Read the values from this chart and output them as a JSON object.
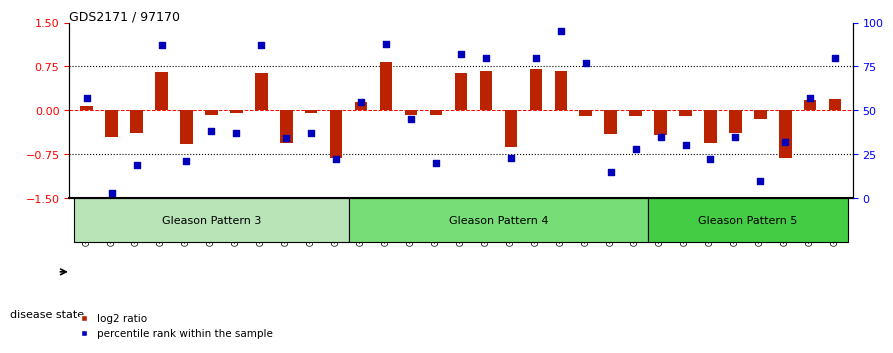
{
  "title": "GDS2171 / 97170",
  "samples": [
    "GSM115759",
    "GSM115764",
    "GSM115765",
    "GSM115768",
    "GSM115770",
    "GSM115775",
    "GSM115783",
    "GSM115784",
    "GSM115785",
    "GSM115786",
    "GSM115789",
    "GSM115760",
    "GSM115761",
    "GSM115762",
    "GSM115766",
    "GSM115767",
    "GSM115771",
    "GSM115773",
    "GSM115776",
    "GSM115777",
    "GSM115778",
    "GSM115779",
    "GSM115790",
    "GSM115763",
    "GSM115772",
    "GSM115774",
    "GSM115780",
    "GSM115781",
    "GSM115782",
    "GSM115787",
    "GSM115788"
  ],
  "log2_ratio": [
    0.08,
    -0.45,
    -0.38,
    0.65,
    -0.58,
    -0.08,
    -0.05,
    0.63,
    -0.55,
    -0.05,
    -0.82,
    0.15,
    0.82,
    -0.08,
    -0.08,
    0.63,
    0.68,
    -0.62,
    0.7,
    0.68,
    -0.1,
    -0.4,
    -0.1,
    -0.42,
    -0.1,
    -0.55,
    -0.38,
    -0.15,
    -0.82,
    0.18,
    0.2
  ],
  "percentile": [
    57,
    3,
    19,
    87,
    21,
    38,
    37,
    87,
    34,
    37,
    22,
    55,
    88,
    45,
    20,
    82,
    80,
    23,
    80,
    95,
    77,
    15,
    28,
    35,
    30,
    22,
    35,
    10,
    32,
    57,
    80
  ],
  "group_labels": [
    "Gleason Pattern 3",
    "Gleason Pattern 4",
    "Gleason Pattern 5"
  ],
  "group_counts": [
    11,
    12,
    8
  ],
  "group_colors": [
    "#b8e4b8",
    "#77dd77",
    "#44cc44"
  ],
  "ylim_left": [
    -1.5,
    1.5
  ],
  "ylim_right": [
    0,
    100
  ],
  "yticks_left": [
    -1.5,
    -0.75,
    0.0,
    0.75,
    1.5
  ],
  "yticks_right": [
    0,
    25,
    50,
    75,
    100
  ],
  "hlines_dotted": [
    0.75,
    -0.75
  ],
  "hline_zero": 0.0,
  "bar_color": "#bb2200",
  "dot_color": "#0000bb",
  "bar_width": 0.5,
  "dot_size": 22,
  "disease_state_label": "disease state",
  "legend_log2": "log2 ratio",
  "legend_pct": "percentile rank within the sample",
  "bg_color": "#ffffff"
}
